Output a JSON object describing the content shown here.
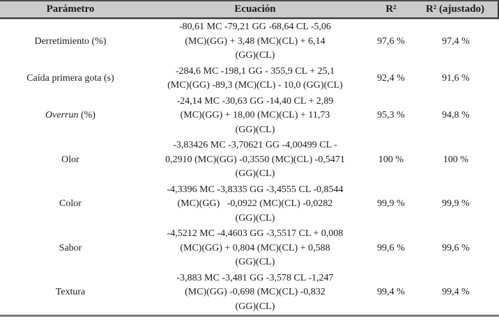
{
  "table": {
    "headers": {
      "parametro": "Parámetro",
      "ecuacion": "Ecuación",
      "r2": "R²",
      "r2_ajustado": "R² (ajustado)"
    },
    "rows": [
      {
        "param": [
          {
            "text": "Derretimiento (%)",
            "italic": false
          }
        ],
        "equation_lines": [
          "-80,61 MC -79,21 GG -68,64 CL -5,06",
          "(MC)(GG) + 3,48 (MC)(CL) + 6,14",
          "(GG)(CL)"
        ],
        "r2": "97,6 %",
        "r2_adj": "97,4 %"
      },
      {
        "param": [
          {
            "text": "Caída primera gota (s)",
            "italic": false
          }
        ],
        "equation_lines": [
          "-284,6 MC -198,1 GG - 355,9 CL + 25,1",
          "(MC)(GG) -89,3 (MC)(CL) - 10,0 (GG)(CL)"
        ],
        "r2": "92,4 %",
        "r2_adj": "91,6 %"
      },
      {
        "param": [
          {
            "text": "Overrun",
            "italic": true
          },
          {
            "text": " (%)",
            "italic": false
          }
        ],
        "equation_lines": [
          "-24,14 MC -30,63 GG -14,40 CL + 2,89",
          "(MC)(GG) + 18,00 (MC)(CL) + 11,73",
          "(GG)(CL)"
        ],
        "r2": "95,3 %",
        "r2_adj": "94,8 %"
      },
      {
        "param": [
          {
            "text": "Olor",
            "italic": false
          }
        ],
        "equation_lines": [
          "-3,83426 MC -3,70621 GG -4,00499 CL -",
          "0,2910 (MC)(GG) -0,3550 (MC)(CL) -0,5471",
          "(GG)(CL)"
        ],
        "r2": "100 %",
        "r2_adj": "100 %"
      },
      {
        "param": [
          {
            "text": "Color",
            "italic": false
          }
        ],
        "equation_lines": [
          "-4,3396 MC -3,8335 GG -3,4555 CL -0,8544",
          "(MC)(GG)   -0,0922 (MC)(CL) -0,0282",
          "(GG)(CL)"
        ],
        "r2": "99,9 %",
        "r2_adj": "99,9 %"
      },
      {
        "param": [
          {
            "text": "Sabor",
            "italic": false
          }
        ],
        "equation_lines": [
          "-4,5212 MC -4,4603 GG -3,5517 CL + 0,008",
          "(MC)(GG) + 0,804 (MC)(CL) + 0,588",
          "(GG)(CL)"
        ],
        "r2": "99,6 %",
        "r2_adj": "99,6 %"
      },
      {
        "param": [
          {
            "text": "Textura",
            "italic": false
          }
        ],
        "equation_lines": [
          "-3,883 MC -3,481 GG -3,578 CL -1,247",
          "(MC)(GG) -0,698 (MC)(CL) -0,832",
          "(GG)(CL)"
        ],
        "r2": "99,4 %",
        "r2_adj": "99,4 %"
      }
    ]
  },
  "colors": {
    "header_bg": "#cbcbcb",
    "rule_top": "#4b4b4b",
    "rule_header_bottom": "#383838",
    "rule_header_shadow": "#ababab",
    "rule_bottom": "#7a7a7a",
    "text": "#1b1b1b"
  }
}
